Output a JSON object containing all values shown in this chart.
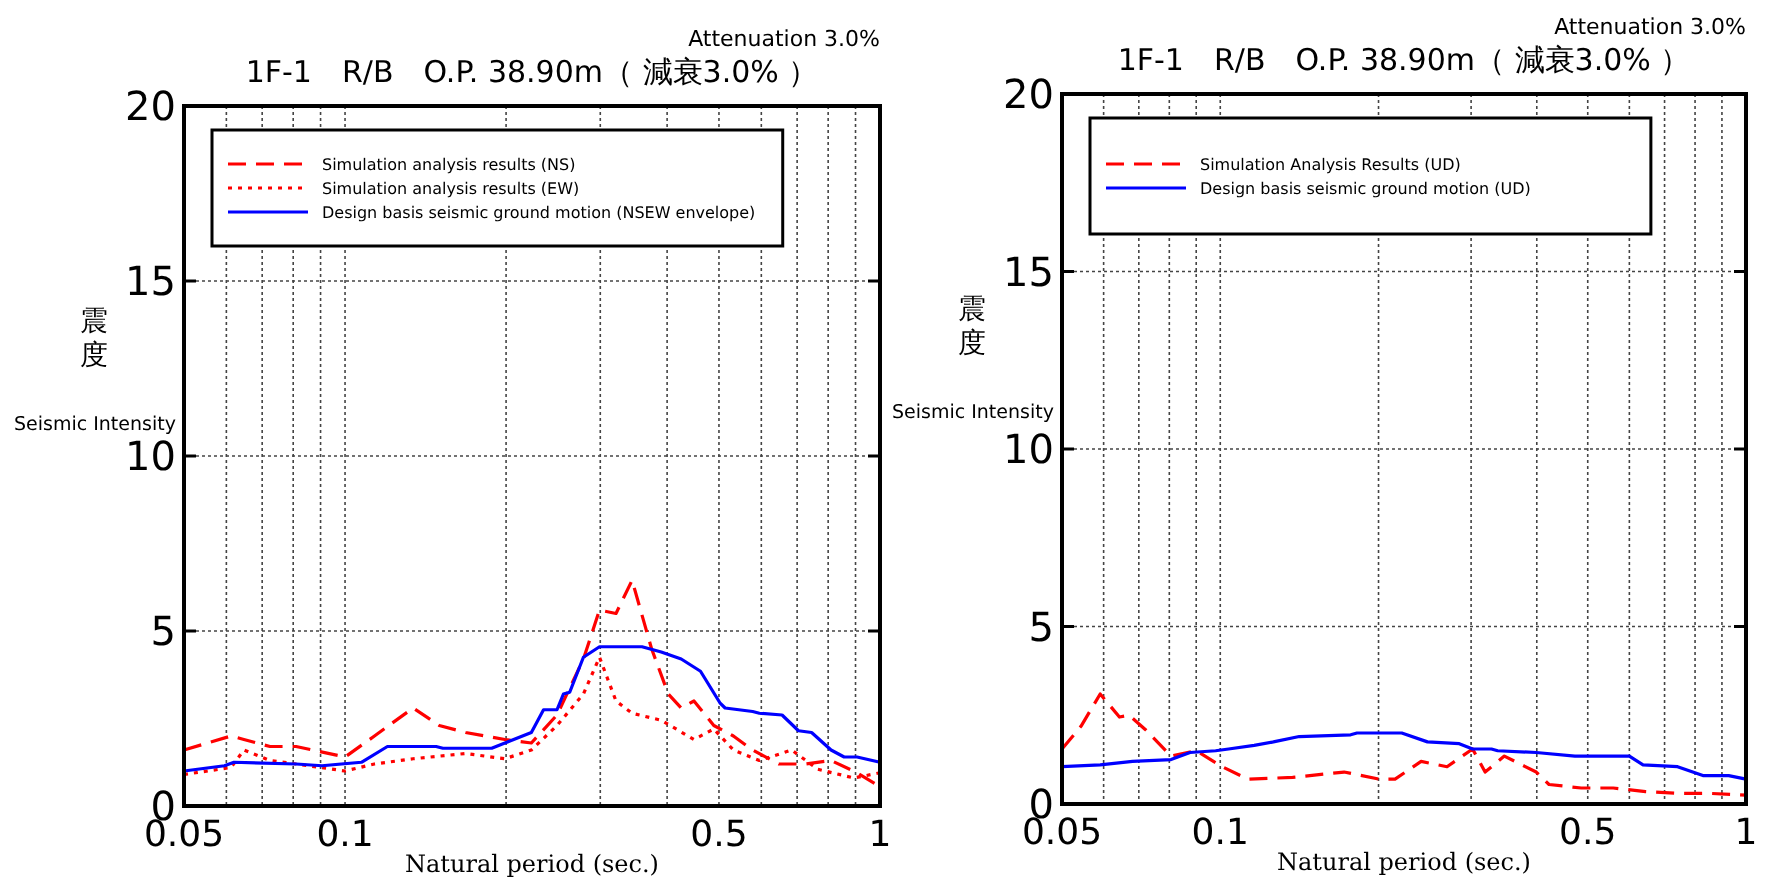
{
  "chart_data": [
    {
      "type": "line",
      "title": "1F-1　R/B　O.P. 38.90m（ 減衰3.0% ）",
      "subtitle": "Attenuation 3.0%",
      "xlabel": "Natural period (sec.)",
      "ylabel": "震度",
      "annotations": [
        "Seismic Intensity"
      ],
      "log": "x",
      "xlim": [
        0.05,
        1
      ],
      "ylim": [
        0,
        20
      ],
      "grid": true,
      "legend": "top",
      "xticks": [
        0.05,
        {
          "value": 0.06,
          "label": null
        },
        {
          "value": 0.07,
          "label": null
        },
        {
          "value": 0.08,
          "label": null
        },
        {
          "value": 0.09,
          "label": null
        },
        0.1,
        {
          "value": 0.2,
          "label": null
        },
        {
          "value": 0.3,
          "label": null
        },
        {
          "value": 0.4,
          "label": null
        },
        0.5,
        {
          "value": 0.6,
          "label": null
        },
        {
          "value": 0.7,
          "label": null
        },
        {
          "value": 0.8,
          "label": null
        },
        {
          "value": 0.9,
          "label": null
        },
        1
      ],
      "yticks": [
        0,
        5,
        10,
        15,
        20
      ],
      "series": [
        {
          "name": "Simulation analysis results (NS)",
          "color": "#ff0000",
          "line_style": "dashed",
          "x": [
            0.05,
            0.0612,
            0.0647,
            0.0724,
            0.081,
            0.1,
            0.1135,
            0.134,
            0.15,
            0.168,
            0.199,
            0.223,
            0.249,
            0.279,
            0.299,
            0.321,
            0.344,
            0.374,
            0.402,
            0.425,
            0.449,
            0.489,
            0.532,
            0.578,
            0.647,
            0.724,
            0.81,
            0.906,
            1
          ],
          "values": [
            1.6,
            2.0,
            1.9,
            1.7,
            1.7,
            1.4,
            2.0,
            2.8,
            2.3,
            2.1,
            1.9,
            1.8,
            2.6,
            4.2,
            5.6,
            5.5,
            6.45,
            4.5,
            3.2,
            2.8,
            3.0,
            2.3,
            2.0,
            1.6,
            1.2,
            1.2,
            1.3,
            0.95,
            0.55
          ]
        },
        {
          "name": "Simulation analysis results (EW)",
          "color": "#ff0000",
          "line_style": "dotted",
          "x": [
            0.05,
            0.0612,
            0.0647,
            0.0724,
            0.081,
            0.1,
            0.1135,
            0.134,
            0.168,
            0.199,
            0.223,
            0.249,
            0.279,
            0.299,
            0.321,
            0.344,
            0.39,
            0.449,
            0.489,
            0.532,
            0.595,
            0.684,
            0.765,
            0.894,
            1
          ],
          "values": [
            0.9,
            1.1,
            1.6,
            1.3,
            1.2,
            1.0,
            1.2,
            1.35,
            1.5,
            1.35,
            1.6,
            2.3,
            3.2,
            4.25,
            3.0,
            2.65,
            2.45,
            1.9,
            2.2,
            1.6,
            1.3,
            1.6,
            1.05,
            0.8,
            0.95
          ]
        },
        {
          "name": "Design basis seismic ground motion (NSEW envelope)",
          "color": "#0000ff",
          "line_style": "solid",
          "x": [
            0.05,
            0.0595,
            0.062,
            0.081,
            0.0906,
            0.1073,
            0.12,
            0.148,
            0.1524,
            0.188,
            0.199,
            0.223,
            0.235,
            0.249,
            0.256,
            0.263,
            0.279,
            0.299,
            0.359,
            0.39,
            0.425,
            0.4618,
            0.502,
            0.5134,
            0.578,
            0.595,
            0.656,
            0.704,
            0.745,
            0.81,
            0.857,
            0.906,
            1
          ],
          "values": [
            1.0,
            1.15,
            1.25,
            1.2,
            1.15,
            1.25,
            1.7,
            1.7,
            1.65,
            1.65,
            1.8,
            2.1,
            2.75,
            2.75,
            3.2,
            3.25,
            4.25,
            4.55,
            4.55,
            4.4,
            4.2,
            3.85,
            2.95,
            2.8,
            2.7,
            2.65,
            2.6,
            2.15,
            2.1,
            1.6,
            1.4,
            1.4,
            1.25
          ]
        }
      ]
    },
    {
      "type": "line",
      "title": "1F-1　R/B　O.P. 38.90m（ 減衰3.0% ）",
      "subtitle": "Attenuation 3.0%",
      "xlabel": "Natural period (sec.)",
      "ylabel": "震度",
      "annotations": [
        "Seismic Intensity"
      ],
      "log": "x",
      "xlim": [
        0.05,
        1
      ],
      "ylim": [
        0,
        20
      ],
      "grid": true,
      "legend": "top",
      "xticks": [
        0.05,
        {
          "value": 0.06,
          "label": null
        },
        {
          "value": 0.07,
          "label": null
        },
        {
          "value": 0.08,
          "label": null
        },
        {
          "value": 0.09,
          "label": null
        },
        0.1,
        {
          "value": 0.2,
          "label": null
        },
        {
          "value": 0.3,
          "label": null
        },
        {
          "value": 0.4,
          "label": null
        },
        0.5,
        {
          "value": 0.6,
          "label": null
        },
        {
          "value": 0.7,
          "label": null
        },
        {
          "value": 0.8,
          "label": null
        },
        {
          "value": 0.9,
          "label": null
        },
        1
      ],
      "yticks": [
        0,
        5,
        10,
        15,
        20
      ],
      "series": [
        {
          "name": "Simulation Analysis Results (UD)",
          "color": "#ff0000",
          "line_style": "dashed",
          "x": [
            0.05,
            0.0544,
            0.0591,
            0.0643,
            0.0671,
            0.072,
            0.0806,
            0.0901,
            0.1008,
            0.1128,
            0.1373,
            0.172,
            0.2007,
            0.215,
            0.241,
            0.27,
            0.302,
            0.319,
            0.347,
            0.399,
            0.422,
            0.486,
            0.559,
            0.644,
            0.741,
            0.852,
            1
          ],
          "values": [
            1.55,
            2.2,
            3.1,
            2.45,
            2.5,
            2.1,
            1.35,
            1.5,
            1.05,
            0.7,
            0.75,
            0.9,
            0.7,
            0.7,
            1.2,
            1.05,
            1.55,
            0.9,
            1.35,
            0.9,
            0.55,
            0.45,
            0.45,
            0.35,
            0.3,
            0.3,
            0.25
          ]
        },
        {
          "name": "Design basis seismic ground motion (UD)",
          "color": "#0000ff",
          "line_style": "solid",
          "x": [
            0.05,
            0.0591,
            0.0681,
            0.0806,
            0.0876,
            0.098,
            0.1037,
            0.116,
            0.1262,
            0.1413,
            0.177,
            0.182,
            0.2214,
            0.2478,
            0.2848,
            0.302,
            0.328,
            0.337,
            0.399,
            0.4726,
            0.6,
            0.637,
            0.741,
            0.828,
            0.927,
            1
          ],
          "values": [
            1.05,
            1.1,
            1.2,
            1.25,
            1.45,
            1.5,
            1.55,
            1.65,
            1.75,
            1.9,
            1.95,
            2.0,
            2.0,
            1.75,
            1.7,
            1.55,
            1.55,
            1.5,
            1.45,
            1.35,
            1.35,
            1.1,
            1.05,
            0.8,
            0.8,
            0.7
          ]
        }
      ]
    }
  ]
}
